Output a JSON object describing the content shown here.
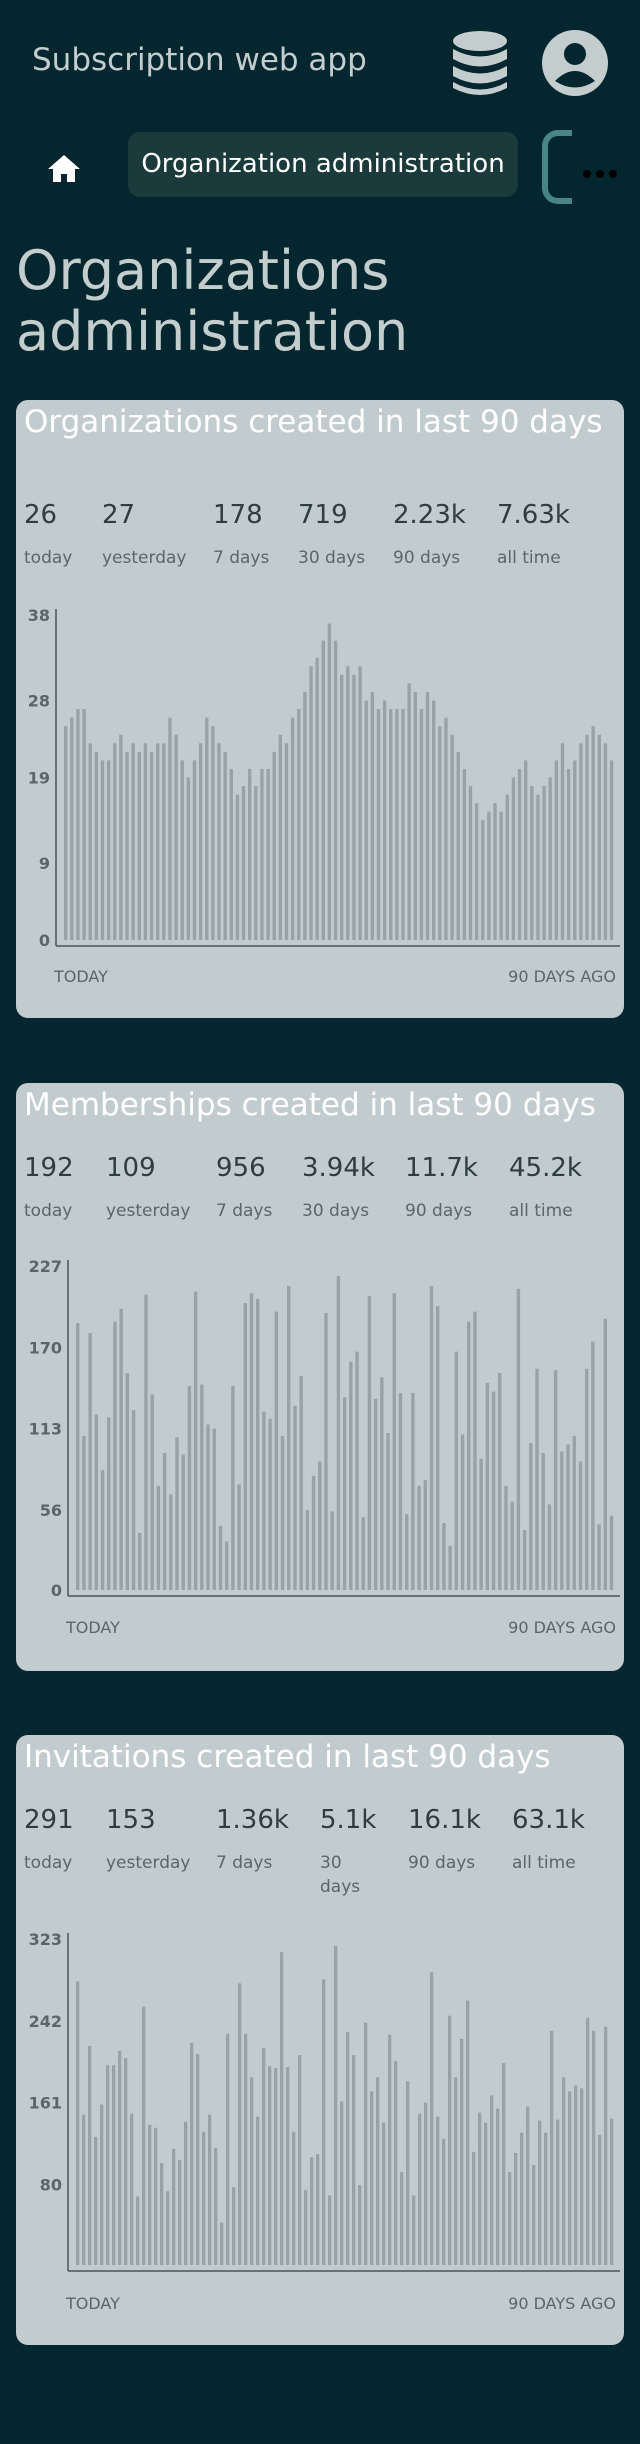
{
  "header": {
    "title": "Subscription web app",
    "db_icon": "database-icon",
    "user_icon": "account-circle-icon"
  },
  "nav": {
    "home_icon": "home-icon",
    "active_label": "Organization administration",
    "more_icon": "more-horizontal-icon"
  },
  "page_title": "Organizations administration",
  "colors": {
    "background": "#03262f",
    "card": "#c2ccce",
    "bar": "#98a3a7",
    "nav_pill": "#1a3a3c"
  },
  "cards": [
    {
      "title": "Organizations created in last 90 days",
      "stats": [
        {
          "value": "26",
          "label": "today"
        },
        {
          "value": "27",
          "label": "yesterday"
        },
        {
          "value": "178",
          "label": "7 days"
        },
        {
          "value": "719",
          "label": "30 days"
        },
        {
          "value": "2.23k",
          "label": "90 days"
        },
        {
          "value": "7.63k",
          "label": "all time"
        }
      ],
      "range_start": "TODAY",
      "range_end": "90 DAYS AGO"
    },
    {
      "title": "Memberships created in last 90 days",
      "stats": [
        {
          "value": "192",
          "label": "today"
        },
        {
          "value": "109",
          "label": "yesterday"
        },
        {
          "value": "956",
          "label": "7 days"
        },
        {
          "value": "3.94k",
          "label": "30 days"
        },
        {
          "value": "11.7k",
          "label": "90 days"
        },
        {
          "value": "45.2k",
          "label": "all time"
        }
      ],
      "range_start": "TODAY",
      "range_end": "90 DAYS AGO"
    },
    {
      "title": "Invitations created in last 90 days",
      "stats": [
        {
          "value": "291",
          "label": "today"
        },
        {
          "value": "153",
          "label": "yesterday"
        },
        {
          "value": "1.36k",
          "label": "7 days"
        },
        {
          "value": "5.1k",
          "label": "30 days"
        },
        {
          "value": "16.1k",
          "label": "90 days"
        },
        {
          "value": "63.1k",
          "label": "all time"
        }
      ],
      "range_start": "TODAY",
      "range_end": "90 DAYS AGO"
    }
  ],
  "chart_data": [
    {
      "type": "bar",
      "title": "Organizations created in last 90 days",
      "xlabel": "",
      "ylabel": "",
      "ylim": [
        0,
        38
      ],
      "yticks": [
        0,
        9,
        19,
        28,
        38
      ],
      "grid": false,
      "values": [
        25,
        26,
        27,
        27,
        23,
        22,
        21,
        21,
        23,
        24,
        22,
        23,
        22,
        23,
        22,
        23,
        23,
        26,
        24,
        21,
        19,
        21,
        23,
        26,
        25,
        23,
        22,
        20,
        17,
        18,
        20,
        18,
        20,
        20,
        22,
        24,
        23,
        26,
        27,
        29,
        32,
        33,
        35,
        37,
        35,
        31,
        32,
        31,
        32,
        28,
        29,
        27,
        28,
        27,
        27,
        27,
        30,
        29,
        27,
        29,
        28,
        25,
        26,
        24,
        22,
        20,
        18,
        16,
        14,
        15,
        16,
        15,
        17,
        19,
        20,
        21,
        18,
        17,
        18,
        19,
        21,
        23,
        20,
        21,
        23,
        24,
        25,
        24,
        23,
        21
      ]
    },
    {
      "type": "bar",
      "title": "Memberships created in last 90 days",
      "xlabel": "",
      "ylabel": "",
      "ylim": [
        0,
        227
      ],
      "yticks": [
        0,
        56,
        113,
        170,
        227
      ],
      "grid": false,
      "values": [
        187,
        108,
        180,
        123,
        84,
        121,
        188,
        197,
        152,
        126,
        40,
        207,
        137,
        73,
        96,
        67,
        107,
        95,
        143,
        209,
        144,
        116,
        113,
        45,
        34,
        143,
        74,
        201,
        208,
        204,
        125,
        120,
        195,
        108,
        213,
        129,
        150,
        56,
        80,
        90,
        194,
        55,
        220,
        135,
        160,
        167,
        51,
        206,
        134,
        149,
        110,
        208,
        138,
        53,
        138,
        73,
        77,
        213,
        199,
        47,
        31,
        167,
        109,
        188,
        195,
        92,
        145,
        139,
        152,
        73,
        62,
        211,
        42,
        103,
        155,
        96,
        60,
        154,
        97,
        102,
        108,
        90,
        155,
        174,
        46,
        190,
        52
      ]
    },
    {
      "type": "bar",
      "title": "Invitations created in last 90 days",
      "xlabel": "",
      "ylabel": "",
      "ylim": [
        0,
        323
      ],
      "yticks": [
        80,
        161,
        242,
        323
      ],
      "grid": false,
      "values": [
        281,
        149,
        217,
        127,
        159,
        198,
        198,
        212,
        205,
        150,
        68,
        256,
        139,
        136,
        101,
        73,
        115,
        104,
        142,
        220,
        209,
        132,
        149,
        116,
        42,
        229,
        77,
        279,
        229,
        186,
        147,
        215,
        197,
        195,
        310,
        196,
        132,
        208,
        74,
        107,
        110,
        283,
        69,
        316,
        162,
        231,
        208,
        79,
        240,
        172,
        186,
        141,
        228,
        202,
        92,
        182,
        69,
        150,
        161,
        290,
        147,
        125,
        247,
        186,
        224,
        262,
        112,
        151,
        141,
        168,
        155,
        200,
        92,
        111,
        131,
        157,
        99,
        143,
        131,
        232,
        144,
        186,
        172,
        178,
        175,
        245,
        232,
        129,
        236,
        145
      ]
    }
  ]
}
